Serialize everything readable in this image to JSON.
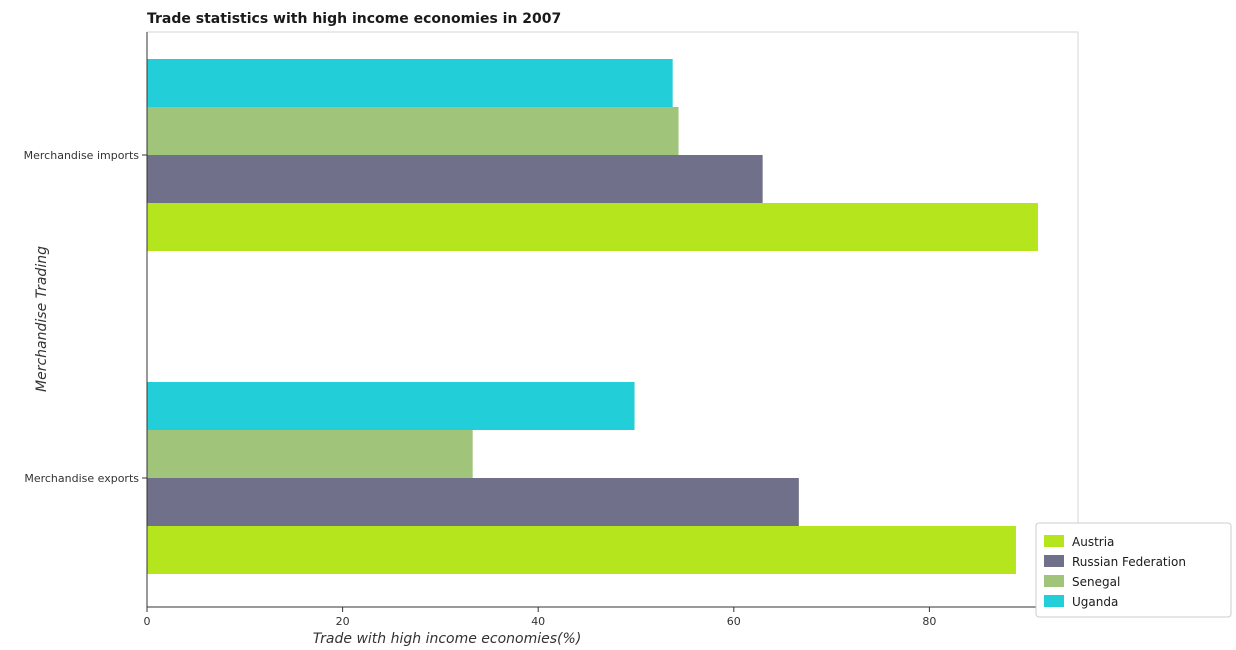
{
  "chart_data": {
    "type": "bar",
    "orientation": "horizontal",
    "title": "Trade statistics with high income economies in 2007",
    "xlabel": "Trade with high income economies(%)",
    "ylabel": "Merchandise Trading",
    "categories": [
      "Merchandise exports",
      "Merchandise imports"
    ],
    "xlim": [
      0,
      95
    ],
    "xticks": [
      0,
      20,
      40,
      60,
      80
    ],
    "grid": false,
    "legend_position": "bottom-right",
    "series": [
      {
        "name": "Austria",
        "color": "#b5e61d",
        "values": [
          88.85,
          91.1
        ]
      },
      {
        "name": "Russian Federation",
        "color": "#70708a",
        "values": [
          66.65,
          62.95
        ]
      },
      {
        "name": "Senegal",
        "color": "#9fc47a",
        "values": [
          33.3,
          54.35
        ]
      },
      {
        "name": "Uganda",
        "color": "#22cfd8",
        "values": [
          49.85,
          53.75
        ]
      }
    ]
  }
}
